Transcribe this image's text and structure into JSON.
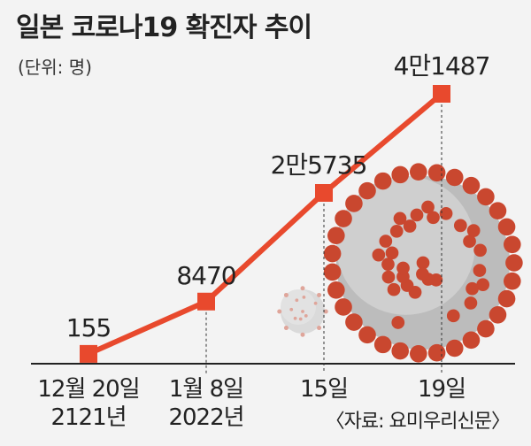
{
  "title": "일본 코로나19 확진자 추이",
  "unit": "(단위: 명)",
  "source": "〈자료: 요미우리신문〉",
  "colors": {
    "line": "#e8492d",
    "marker": "#e8492d",
    "text": "#222222",
    "background": "#f3f3f3",
    "virus": "#c9472f"
  },
  "chart_data": {
    "type": "line",
    "categories": [
      "12월 20일 2121년",
      "1월 8일 2022년",
      "15일",
      "19일"
    ],
    "x_tick_lines": [
      [
        "12월 20일",
        "2121년"
      ],
      [
        "1월 8일",
        "2022년"
      ],
      [
        "15일"
      ],
      [
        "19일"
      ]
    ],
    "values": [
      155,
      8470,
      25735,
      41487
    ],
    "value_labels": [
      "155",
      "8470",
      "2만5735",
      "4만1487"
    ],
    "title": "일본 코로나19 확진자 추이",
    "ylabel": "",
    "xlabel": "",
    "ylim": [
      0,
      41487
    ],
    "grid": false,
    "legend": "none"
  },
  "illustration": {
    "name": "coronavirus-illustration"
  }
}
